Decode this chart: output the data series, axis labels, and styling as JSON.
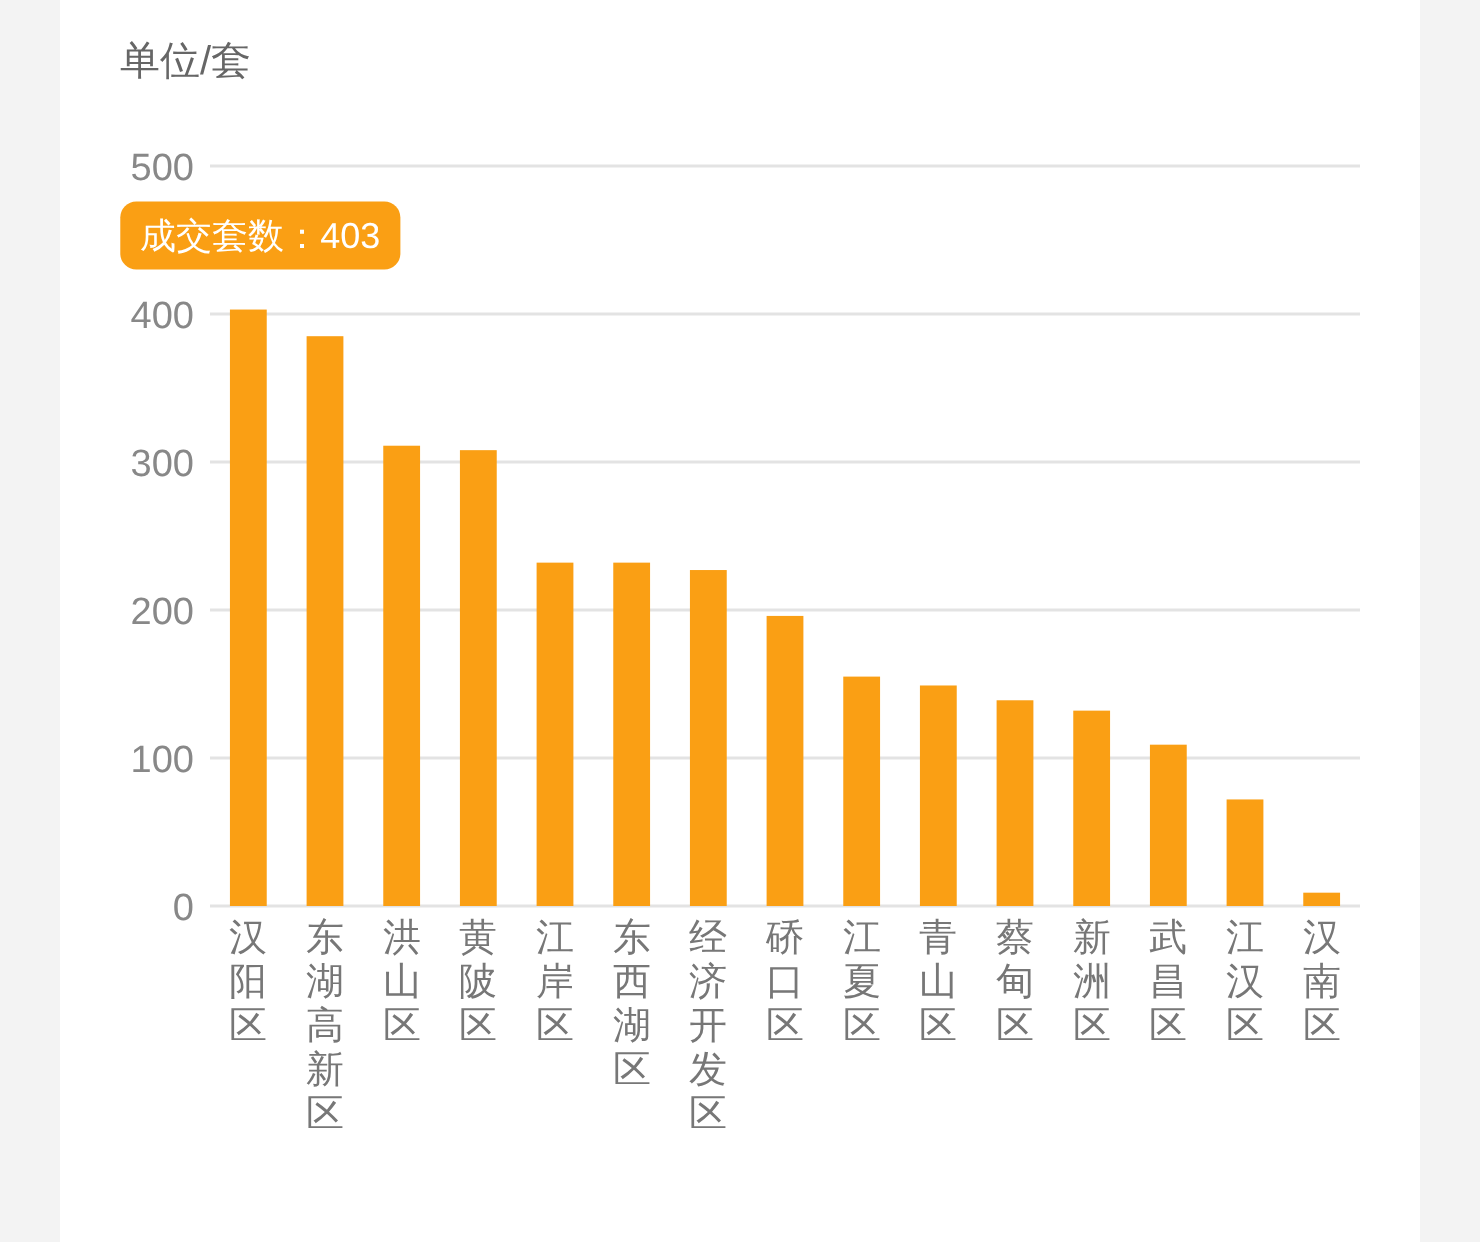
{
  "chart_data": {
    "type": "bar",
    "ylabel": "单位/套",
    "categories": [
      "汉阳区",
      "东湖高新区",
      "洪山区",
      "黄陂区",
      "江岸区",
      "东西湖区",
      "经济开发区",
      "硚口区",
      "江夏区",
      "青山区",
      "蔡甸区",
      "新洲区",
      "武昌区",
      "江汉区",
      "汉南区"
    ],
    "values": [
      403,
      385,
      311,
      308,
      232,
      232,
      227,
      196,
      155,
      149,
      139,
      132,
      109,
      72,
      9
    ],
    "color": "#fa9f14",
    "ylim": [
      0,
      500
    ],
    "yticks": [
      0,
      100,
      200,
      300,
      400,
      500
    ],
    "grid": "y",
    "annotations": [
      {
        "text": "成交套数：403",
        "x": "汉阳区",
        "y": 403
      }
    ]
  }
}
